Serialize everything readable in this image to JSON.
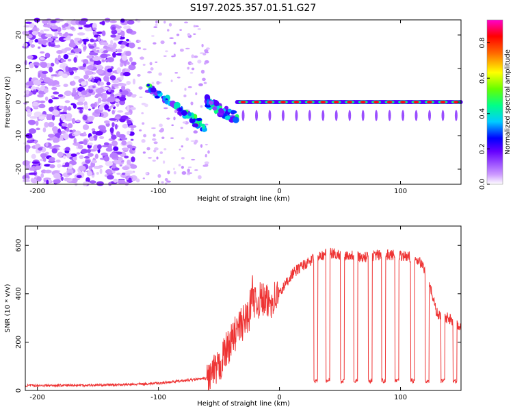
{
  "title": "S197.2025.357.01.51.G27",
  "chart_data": [
    {
      "type": "heatmap",
      "name": "spectrogram",
      "xlabel": "Height of straight line (km)",
      "ylabel": "Frequency (Hz)",
      "xlim": [
        -210,
        150
      ],
      "ylim": [
        -24.5,
        24.5
      ],
      "xticks": [
        -200,
        -100,
        0,
        100
      ],
      "yticks": [
        -20,
        -10,
        0,
        10,
        20
      ],
      "colorbar": {
        "label": "Normalized spectral amplitude",
        "range": [
          0.0,
          0.93
        ],
        "ticks": [
          0.0,
          0.2,
          0.4,
          0.6,
          0.8
        ]
      },
      "features": [
        {
          "x_range": [
            -210,
            -120
          ],
          "freq_range": [
            -24.5,
            24.5
          ],
          "description": "scattered low-amplitude noise"
        },
        {
          "x_range": [
            -110,
            -60
          ],
          "freq_start": 5,
          "freq_end": -8,
          "peak_amplitude": 0.4
        },
        {
          "x_range": [
            -60,
            -35
          ],
          "freq_start": 0,
          "freq_end": -5,
          "peak_amplitude": 0.35
        },
        {
          "x_range": [
            -35,
            150
          ],
          "freq": 0,
          "peak_amplitude": 0.9
        }
      ]
    },
    {
      "type": "line",
      "name": "snr",
      "xlabel": "Height of straight line (km)",
      "ylabel": "SNR (10 * v/v)",
      "xlim": [
        -210,
        150
      ],
      "ylim": [
        0,
        680
      ],
      "xticks": [
        -200,
        -100,
        0,
        100
      ],
      "yticks": [
        0,
        200,
        400,
        600
      ],
      "color": "#ee3333",
      "series": [
        {
          "name": "SNR",
          "x": [
            -210,
            -150,
            -120,
            -100,
            -80,
            -60,
            -50,
            -45,
            -40,
            -35,
            -30,
            -25,
            -22,
            -20,
            -15,
            -10,
            -5,
            0,
            5,
            10,
            15,
            20,
            25,
            30,
            35,
            40,
            50,
            60,
            70,
            80,
            90,
            100,
            110,
            115,
            120,
            125,
            130,
            135,
            140,
            145,
            150
          ],
          "y": [
            20,
            22,
            25,
            30,
            40,
            50,
            90,
            160,
            200,
            250,
            280,
            320,
            420,
            350,
            380,
            360,
            380,
            400,
            440,
            480,
            500,
            520,
            530,
            560,
            560,
            570,
            560,
            560,
            550,
            560,
            560,
            560,
            550,
            540,
            500,
            420,
            320,
            300,
            300,
            280,
            260
          ]
        }
      ],
      "dropouts_x": [
        30,
        40,
        52,
        63,
        75,
        86,
        97,
        110,
        122,
        135,
        145
      ],
      "dropout_level": 40
    }
  ]
}
